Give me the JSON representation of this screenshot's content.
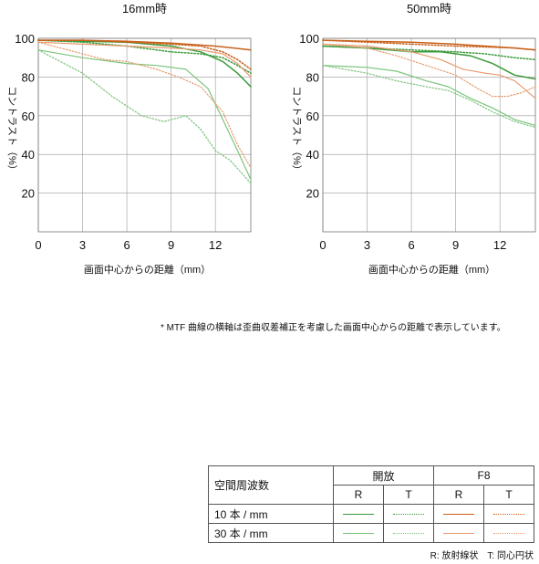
{
  "chart_data": [
    {
      "type": "line",
      "title": "16mm時",
      "xlabel": "画面中心からの距離（mm）",
      "ylabel": "コントラスト（%）",
      "xlim": [
        0,
        14.4
      ],
      "ylim": [
        0,
        100
      ],
      "x_ticks": [
        0,
        3,
        6,
        9,
        12
      ],
      "y_ticks": [
        20,
        40,
        60,
        80,
        100
      ],
      "series": [
        {
          "id": "open-10-R",
          "color": "#3a9a3a",
          "dash": "solid",
          "width": 1.5,
          "points": [
            [
              0,
              99
            ],
            [
              3,
              98.5
            ],
            [
              6,
              98
            ],
            [
              9,
              96
            ],
            [
              11,
              93
            ],
            [
              12.5,
              88
            ],
            [
              13.5,
              82
            ],
            [
              14.4,
              75
            ]
          ]
        },
        {
          "id": "open-10-T",
          "color": "#3a9a3a",
          "dash": "dotted",
          "width": 1.5,
          "points": [
            [
              0,
              99
            ],
            [
              3,
              98
            ],
            [
              6,
              96
            ],
            [
              9,
              93
            ],
            [
              11,
              92
            ],
            [
              12.5,
              90
            ],
            [
              13.5,
              86
            ],
            [
              14.4,
              82
            ]
          ]
        },
        {
          "id": "open-30-R",
          "color": "#7cc47c",
          "dash": "solid",
          "width": 1.2,
          "points": [
            [
              0,
              94
            ],
            [
              3,
              90
            ],
            [
              6,
              87
            ],
            [
              8,
              86
            ],
            [
              10,
              84
            ],
            [
              11.5,
              74
            ],
            [
              12.5,
              58
            ],
            [
              13.5,
              42
            ],
            [
              14.4,
              27
            ]
          ]
        },
        {
          "id": "open-30-T",
          "color": "#7cc47c",
          "dash": "dotted",
          "width": 1.2,
          "points": [
            [
              0,
              94
            ],
            [
              3,
              82
            ],
            [
              5,
              70
            ],
            [
              7,
              60
            ],
            [
              8.5,
              57
            ],
            [
              10,
              60
            ],
            [
              11,
              53
            ],
            [
              12,
              42
            ],
            [
              13,
              37
            ],
            [
              14.4,
              25
            ]
          ]
        },
        {
          "id": "f8-10-R",
          "color": "#c8601a",
          "dash": "solid",
          "width": 1.5,
          "points": [
            [
              0,
              99
            ],
            [
              3,
              99
            ],
            [
              6,
              98.5
            ],
            [
              9,
              97.5
            ],
            [
              12,
              96
            ],
            [
              14.4,
              94
            ]
          ]
        },
        {
          "id": "f8-10-T",
          "color": "#c8601a",
          "dash": "dotted",
          "width": 1.5,
          "points": [
            [
              0,
              99
            ],
            [
              3,
              99
            ],
            [
              6,
              98
            ],
            [
              9,
              97
            ],
            [
              11,
              96
            ],
            [
              12.5,
              93
            ],
            [
              13.5,
              89
            ],
            [
              14.4,
              84
            ]
          ]
        },
        {
          "id": "f8-30-R",
          "color": "#e89a6e",
          "dash": "solid",
          "width": 1.2,
          "points": [
            [
              0,
              98
            ],
            [
              3,
              97
            ],
            [
              6,
              96
            ],
            [
              9,
              95
            ],
            [
              11,
              94
            ],
            [
              12.5,
              92
            ],
            [
              13.5,
              87
            ],
            [
              14.4,
              80
            ]
          ]
        },
        {
          "id": "f8-30-T",
          "color": "#e89a6e",
          "dash": "dotted",
          "width": 1.2,
          "points": [
            [
              0,
              98
            ],
            [
              3,
              92
            ],
            [
              4.5,
              89
            ],
            [
              6,
              88
            ],
            [
              8,
              84
            ],
            [
              9.5,
              80
            ],
            [
              11,
              75
            ],
            [
              12.5,
              62
            ],
            [
              13.5,
              45
            ],
            [
              14.4,
              33
            ]
          ]
        }
      ]
    },
    {
      "type": "line",
      "title": "50mm時",
      "xlabel": "画面中心からの距離（mm）",
      "ylabel": "コントラスト（%）",
      "xlim": [
        0,
        14.4
      ],
      "ylim": [
        0,
        100
      ],
      "x_ticks": [
        0,
        3,
        6,
        9,
        12
      ],
      "y_ticks": [
        20,
        40,
        60,
        80,
        100
      ],
      "series": [
        {
          "id": "open-10-R",
          "color": "#3a9a3a",
          "dash": "solid",
          "width": 1.5,
          "points": [
            [
              0,
              96
            ],
            [
              3,
              95
            ],
            [
              6,
              93
            ],
            [
              8,
              93
            ],
            [
              10,
              91
            ],
            [
              11.5,
              87
            ],
            [
              13,
              81
            ],
            [
              14.4,
              79
            ]
          ]
        },
        {
          "id": "open-10-T",
          "color": "#3a9a3a",
          "dash": "dotted",
          "width": 1.5,
          "points": [
            [
              0,
              96
            ],
            [
              3,
              95
            ],
            [
              6,
              94
            ],
            [
              9,
              93
            ],
            [
              11,
              92
            ],
            [
              13,
              90
            ],
            [
              14.4,
              89
            ]
          ]
        },
        {
          "id": "open-30-R",
          "color": "#7cc47c",
          "dash": "solid",
          "width": 1.2,
          "points": [
            [
              0,
              86
            ],
            [
              3,
              85
            ],
            [
              5,
              83
            ],
            [
              7,
              78
            ],
            [
              8.5,
              75
            ],
            [
              10,
              69
            ],
            [
              11.5,
              64
            ],
            [
              13,
              58
            ],
            [
              14.4,
              55
            ]
          ]
        },
        {
          "id": "open-30-T",
          "color": "#7cc47c",
          "dash": "dotted",
          "width": 1.2,
          "points": [
            [
              0,
              86
            ],
            [
              3,
              82
            ],
            [
              5,
              78
            ],
            [
              7,
              75
            ],
            [
              8.5,
              73
            ],
            [
              10,
              68
            ],
            [
              11.5,
              62
            ],
            [
              13,
              57
            ],
            [
              14.4,
              54
            ]
          ]
        },
        {
          "id": "f8-10-R",
          "color": "#c8601a",
          "dash": "solid",
          "width": 1.5,
          "points": [
            [
              0,
              99
            ],
            [
              3,
              98.5
            ],
            [
              6,
              98
            ],
            [
              9,
              97
            ],
            [
              11,
              96
            ],
            [
              13,
              95
            ],
            [
              14.4,
              94
            ]
          ]
        },
        {
          "id": "f8-10-T",
          "color": "#c8601a",
          "dash": "dotted",
          "width": 1.5,
          "points": [
            [
              0,
              99
            ],
            [
              3,
              98
            ],
            [
              6,
              97
            ],
            [
              9,
              96
            ],
            [
              11,
              95.5
            ],
            [
              13,
              95
            ],
            [
              14.4,
              94
            ]
          ]
        },
        {
          "id": "f8-30-R",
          "color": "#e89a6e",
          "dash": "solid",
          "width": 1.2,
          "points": [
            [
              0,
              97
            ],
            [
              3,
              96
            ],
            [
              6,
              93
            ],
            [
              8,
              89
            ],
            [
              9.5,
              84
            ],
            [
              11,
              82
            ],
            [
              12,
              81
            ],
            [
              13,
              78
            ],
            [
              14.4,
              69
            ]
          ]
        },
        {
          "id": "f8-30-T",
          "color": "#e89a6e",
          "dash": "dotted",
          "width": 1.2,
          "points": [
            [
              0,
              97
            ],
            [
              3,
              95
            ],
            [
              5,
              91
            ],
            [
              7,
              86
            ],
            [
              9,
              81
            ],
            [
              10.5,
              74
            ],
            [
              11.5,
              70
            ],
            [
              12.5,
              70
            ],
            [
              13.5,
              72
            ],
            [
              14.4,
              75
            ]
          ]
        }
      ]
    }
  ],
  "note": "* MTF 曲線の横軸は歪曲収差補正を考慮した画面中心からの距離で表示しています。",
  "legend": {
    "rowhead": "空間周波数",
    "groups": [
      "開放",
      "F8"
    ],
    "subheads": [
      "R",
      "T",
      "R",
      "T"
    ],
    "rows": [
      {
        "label": "10 本 / mm",
        "swatches": [
          {
            "color": "#3a9a3a",
            "dash": "solid"
          },
          {
            "color": "#3a9a3a",
            "dash": "dotted"
          },
          {
            "color": "#c8601a",
            "dash": "solid"
          },
          {
            "color": "#c8601a",
            "dash": "dotted"
          }
        ]
      },
      {
        "label": "30 本 / mm",
        "swatches": [
          {
            "color": "#7cc47c",
            "dash": "solid"
          },
          {
            "color": "#7cc47c",
            "dash": "dotted"
          },
          {
            "color": "#e89a6e",
            "dash": "solid"
          },
          {
            "color": "#e89a6e",
            "dash": "dotted"
          }
        ]
      }
    ]
  },
  "footnote": "R: 放射線状　T: 同心円状"
}
